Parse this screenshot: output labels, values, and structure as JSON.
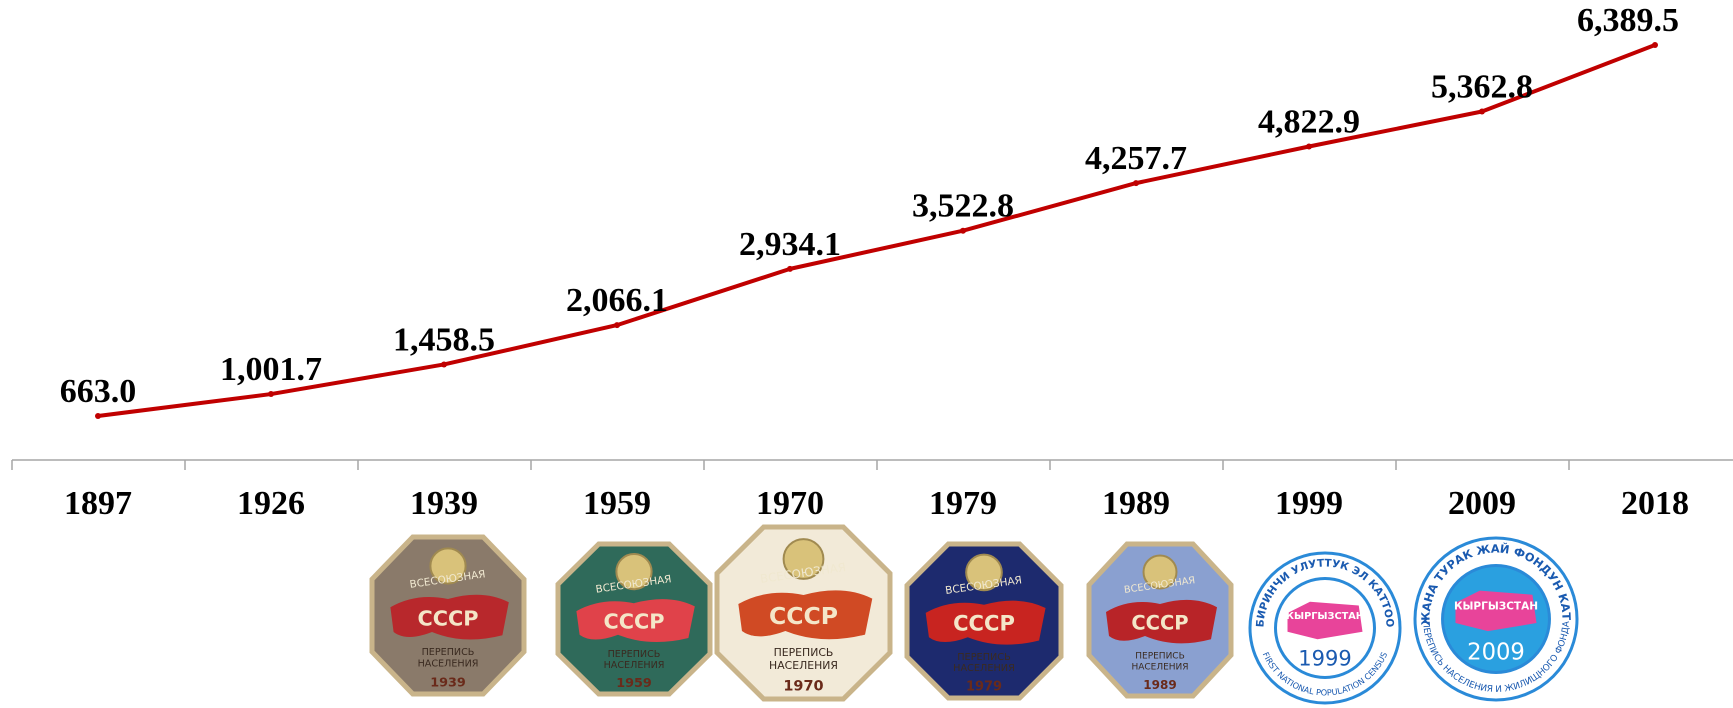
{
  "chart_data": {
    "type": "line",
    "title": "",
    "xlabel": "",
    "ylabel": "",
    "categories": [
      "1897",
      "1926",
      "1939",
      "1959",
      "1970",
      "1979",
      "1989",
      "1999",
      "2009",
      "2018"
    ],
    "series": [
      {
        "values": [
          663.0,
          1001.7,
          1458.5,
          2066.1,
          2934.1,
          3522.8,
          4257.7,
          4822.9,
          5362.8,
          6389.5
        ],
        "labels": [
          "663.0",
          "1,001.7",
          "1,458.5",
          "2,066.1",
          "2,934.1",
          "3,522.8",
          "4,257.7",
          "4,822.9",
          "5,362.8",
          "6,389.5"
        ],
        "color": "#c00000"
      }
    ],
    "ylim": [
      0,
      6500
    ],
    "grid": false,
    "legend": "none"
  },
  "badges": [
    {
      "year": "1939",
      "top_text": "ВСЕСОЮЗНАЯ",
      "mid_text": "СССР",
      "bottom_text": "ПЕРЕПИСЬ НАСЕЛЕНИЯ",
      "face": "#8a7a6a",
      "map": "#b8282c",
      "icon": "census-badge-icon"
    },
    {
      "year": "1959",
      "top_text": "ВСЕСОЮЗНАЯ",
      "mid_text": "СССР",
      "bottom_text": "ПЕРЕПИСЬ НАСЕЛЕНИЯ",
      "face": "#2f6a5a",
      "map": "#e0424a",
      "icon": "census-badge-icon"
    },
    {
      "year": "1970",
      "top_text": "ВСЕСОЮЗНАЯ",
      "mid_text": "СССР",
      "bottom_text": "ПЕРЕПИСЬ НАСЕЛЕНИЯ",
      "face": "#f2ead8",
      "map": "#d04a24",
      "icon": "census-badge-icon"
    },
    {
      "year": "1979",
      "top_text": "ВСЕСОЮЗНАЯ",
      "mid_text": "СССР",
      "bottom_text": "ПЕРЕПИСЬ НАСЕЛЕНИЯ",
      "face": "#1d2a6e",
      "map": "#c82420",
      "icon": "census-badge-icon"
    },
    {
      "year": "1989",
      "top_text": "ВСЕСОЮЗНАЯ",
      "mid_text": "СССР",
      "bottom_text": "ПЕРЕПИСЬ НАСЕЛЕНИЯ",
      "face": "#8aa0d0",
      "map": "#b82428",
      "icon": "census-badge-icon"
    },
    {
      "year": "1999",
      "top_text": "БИРИНЧИ УЛУТТУК ЭЛ КАТТОО",
      "mid_text": "КЫРГЫЗСТАН",
      "bottom_text": "FIRST NATIONAL POPULATION CENSUS",
      "face": "#ffffff",
      "map": "#e8449a",
      "icon": "kyrgyz-census-logo-icon"
    },
    {
      "year": "2009",
      "top_text": "ЭЛ ЖАНА ТУРАК ЖАЙ ФОНДУН КАТТОО",
      "mid_text": "КЫРГЫЗСТАН",
      "bottom_text": "ПЕРЕПИСЬ НАСЕЛЕНИЯ И ЖИЛИЩНОГО ФОНДА",
      "face": "#2aa0e0",
      "map": "#e8449a",
      "icon": "kyrgyz-census-logo-icon"
    }
  ]
}
